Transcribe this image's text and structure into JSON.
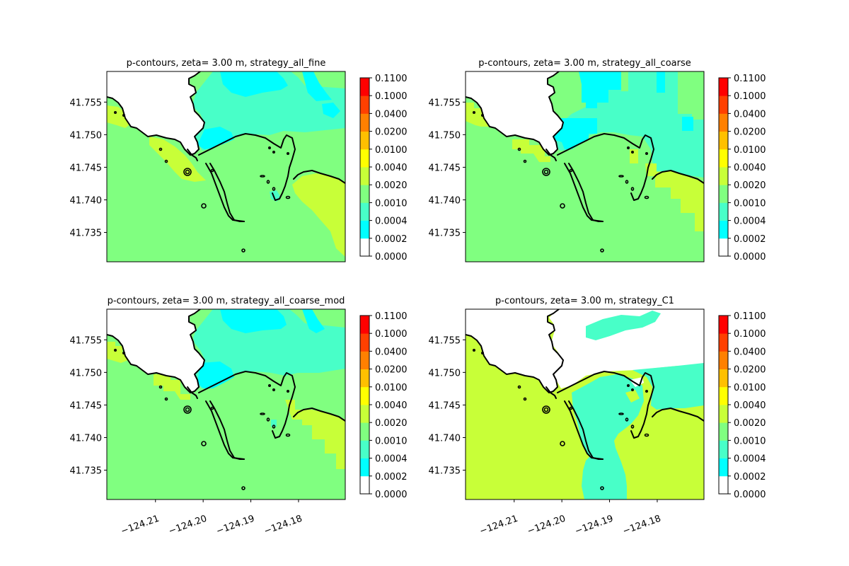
{
  "chart_data": {
    "type": "heatmap",
    "panels": [
      {
        "title": "p-contours, zeta= 3.00 m, strategy_all_fine",
        "variant": "fine"
      },
      {
        "title": "p-contours, zeta= 3.00 m, strategy_all_coarse",
        "variant": "coarse"
      },
      {
        "title": "p-contours, zeta= 3.00 m, strategy_all_coarse_mod",
        "variant": "coarse_mod"
      },
      {
        "title": "p-contours, zeta= 3.00 m, strategy_C1",
        "variant": "C1"
      }
    ],
    "xlim": [
      -124.2202,
      -124.1702
    ],
    "ylim": [
      41.7305,
      41.7597
    ],
    "xticks": [
      -124.21,
      -124.2,
      -124.19,
      -124.18
    ],
    "xtick_labels": [
      "−124.21",
      "−124.20",
      "−124.19",
      "−124.18"
    ],
    "yticks": [
      41.735,
      41.74,
      41.745,
      41.75,
      41.755
    ],
    "ytick_labels": [
      "41.735",
      "41.740",
      "41.745",
      "41.750",
      "41.755"
    ],
    "colorbar": {
      "levels": [
        "0.0000",
        "0.0002",
        "0.0004",
        "0.0010",
        "0.0020",
        "0.0040",
        "0.0100",
        "0.0200",
        "0.0400",
        "0.1000",
        "0.1100"
      ],
      "colors": [
        "#ffffff",
        "#00ffff",
        "#48ffc8",
        "#80ff80",
        "#c8ff38",
        "#ffff00",
        "#ffc000",
        "#ff8000",
        "#ff4000",
        "#ff0000"
      ]
    },
    "coastline_color": "#000000"
  }
}
